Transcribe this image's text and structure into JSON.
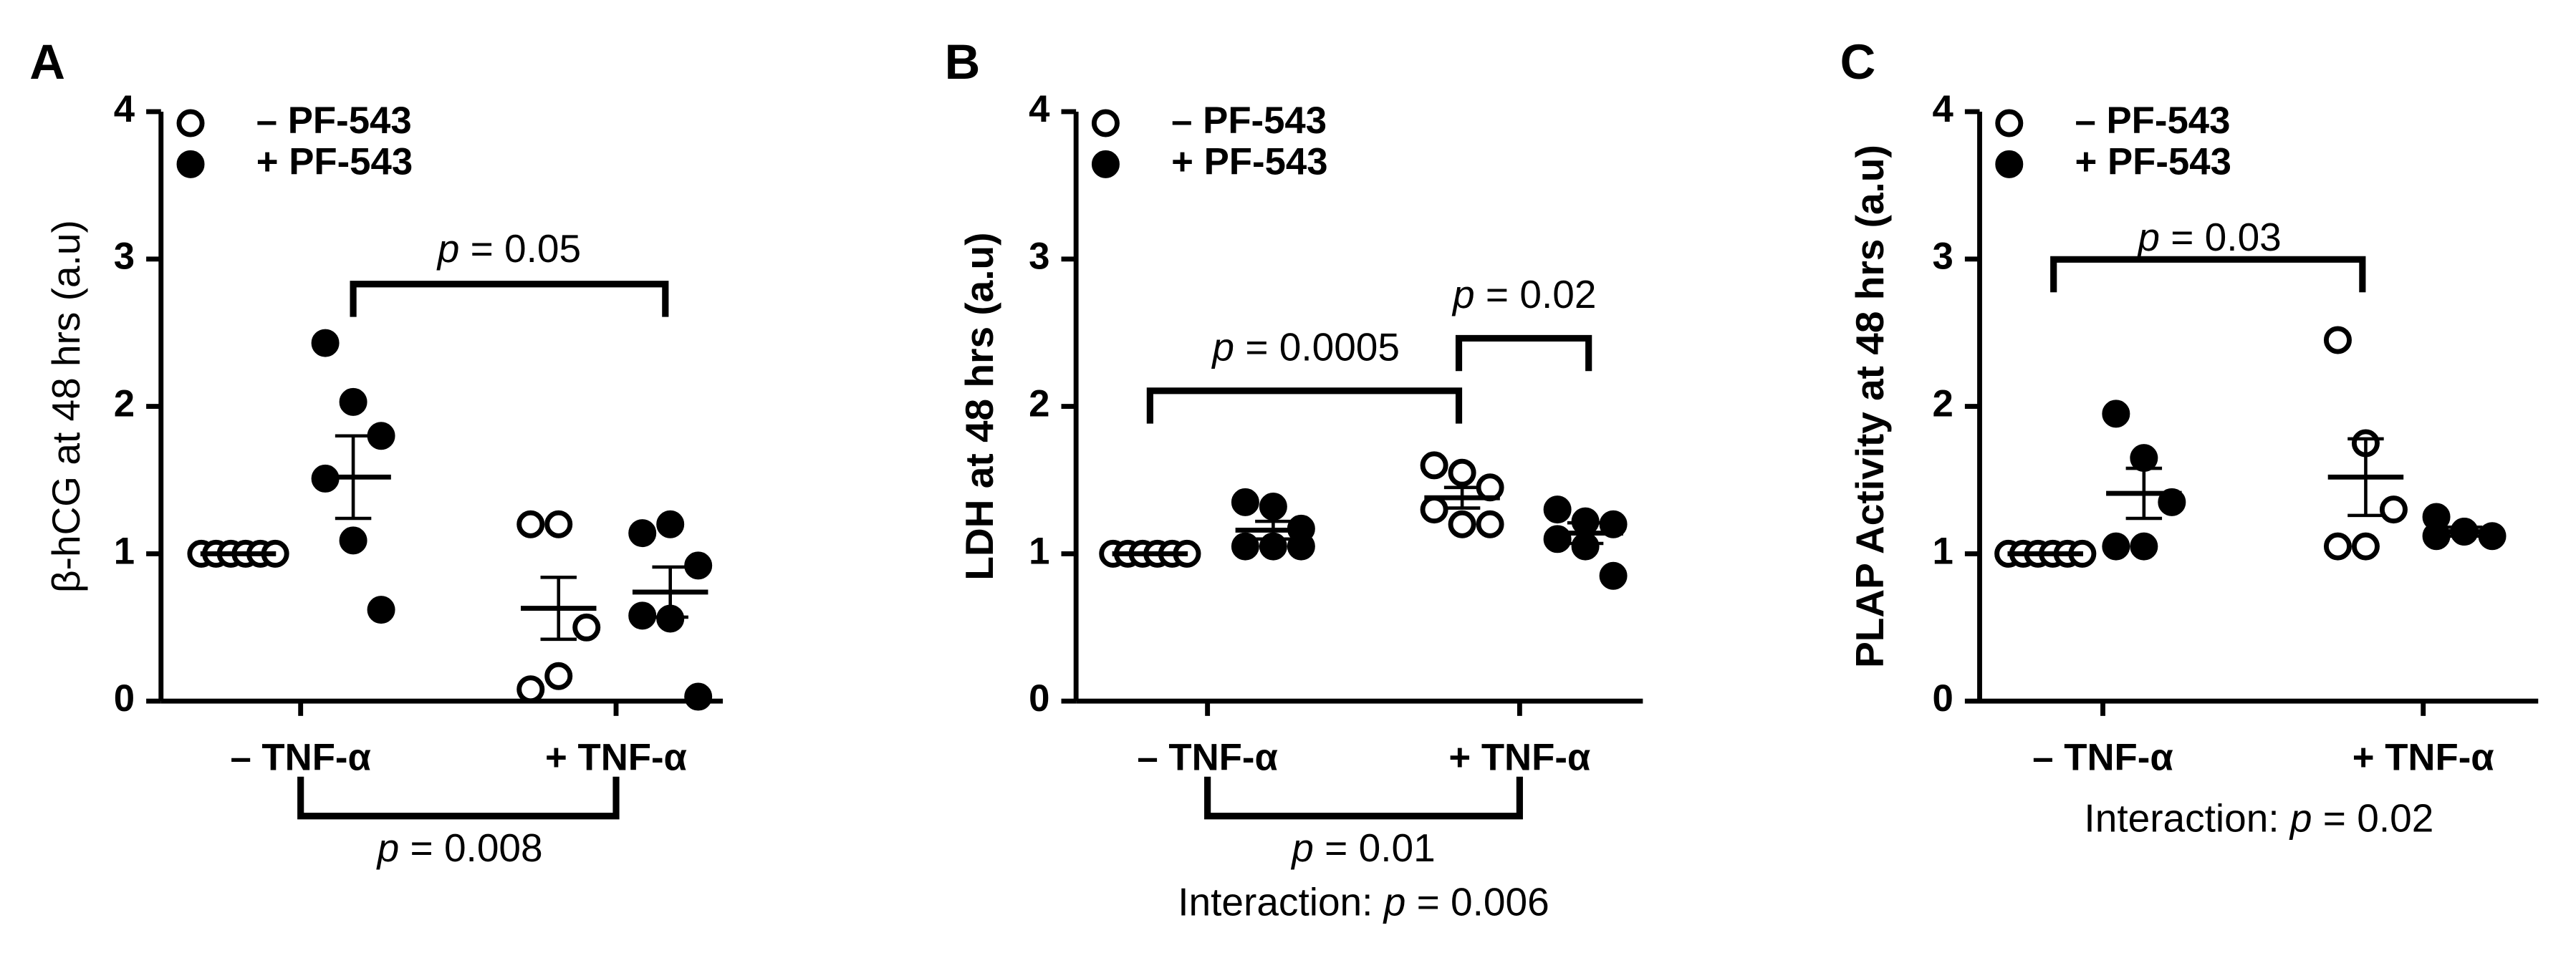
{
  "chart_data": [
    {
      "type": "dot",
      "panel_label": "A",
      "ylabel": "β-hCG at 48 hrs (a.u)",
      "ylabel_bold": false,
      "categories": [
        "– TNF-α",
        "+ TNF-α"
      ],
      "ylim": [
        0,
        4
      ],
      "yticks": [
        0,
        1,
        2,
        3,
        4
      ],
      "series": [
        {
          "name": "–  PF-543",
          "marker": "open",
          "color": "#000000",
          "values": [
            [
              1,
              1,
              1,
              1,
              1,
              1
            ],
            [
              1.2,
              1.2,
              0.5,
              0.08,
              0.17
            ]
          ],
          "mean": [
            1,
            0.63
          ],
          "sem": [
            0,
            0.21
          ]
        },
        {
          "name": "+  PF-543",
          "marker": "filled",
          "color": "#000000",
          "values": [
            [
              2.43,
              2.03,
              1.8,
              1.51,
              1.09,
              0.62
            ],
            [
              1.14,
              1.2,
              0.92,
              0.58,
              0.56,
              0.03
            ]
          ],
          "mean": [
            1.52,
            0.74
          ],
          "sem": [
            0.28,
            0.17
          ]
        }
      ],
      "annotations": [
        [
          "p",
          " = 0.05"
        ],
        [
          "p",
          " = 0.008"
        ]
      ],
      "footer": []
    },
    {
      "type": "dot",
      "panel_label": "B",
      "ylabel": "LDH at 48 hrs (a.u)",
      "ylabel_bold": true,
      "categories": [
        "– TNF-α",
        "+ TNF-α"
      ],
      "ylim": [
        0,
        4
      ],
      "yticks": [
        0,
        1,
        2,
        3,
        4
      ],
      "series": [
        {
          "name": "–  PF-543",
          "marker": "open",
          "color": "#000000",
          "values": [
            [
              1,
              1,
              1,
              1,
              1,
              1
            ],
            [
              1.6,
              1.55,
              1.45,
              1.3,
              1.2,
              1.2
            ]
          ],
          "mean": [
            1,
            1.38
          ],
          "sem": [
            0,
            0.07
          ]
        },
        {
          "name": "+  PF-543",
          "marker": "filled",
          "color": "#000000",
          "values": [
            [
              1.35,
              1.32,
              1.17,
              1.05,
              1.05,
              1.05
            ],
            [
              1.3,
              1.22,
              1.2,
              1.1,
              1.05,
              0.85
            ]
          ],
          "mean": [
            1.16,
            1.14
          ],
          "sem": [
            0.06,
            0.07
          ]
        }
      ],
      "annotations": [
        [
          "p",
          " = 0.0005"
        ],
        [
          "p",
          " = 0.02"
        ],
        [
          "p",
          " = 0.01"
        ]
      ],
      "footer": [
        "Interaction: ",
        "p",
        " = 0.006"
      ]
    },
    {
      "type": "dot",
      "panel_label": "C",
      "ylabel": "PLAP Activity at 48 hrs (a.u)",
      "ylabel_bold": true,
      "categories": [
        "– TNF-α",
        "+ TNF-α"
      ],
      "ylim": [
        0,
        4
      ],
      "yticks": [
        0,
        1,
        2,
        3,
        4
      ],
      "series": [
        {
          "name": "–  PF-543",
          "marker": "open",
          "color": "#000000",
          "values": [
            [
              1,
              1,
              1,
              1,
              1,
              1
            ],
            [
              2.45,
              1.75,
              1.3,
              1.05,
              1.05
            ]
          ],
          "mean": [
            1,
            1.52
          ],
          "sem": [
            0,
            0.26
          ]
        },
        {
          "name": "+  PF-543",
          "marker": "filled",
          "color": "#000000",
          "values": [
            [
              1.95,
              1.65,
              1.35,
              1.05,
              1.05
            ],
            [
              1.25,
              1.15,
              1.12,
              1.12,
              1.15
            ]
          ],
          "mean": [
            1.41,
            1.15
          ],
          "sem": [
            0.17,
            0.03
          ]
        }
      ],
      "annotations": [
        [
          "p",
          " = 0.03"
        ]
      ],
      "footer": [
        "Interaction: ",
        "p",
        " = 0.02"
      ]
    }
  ]
}
